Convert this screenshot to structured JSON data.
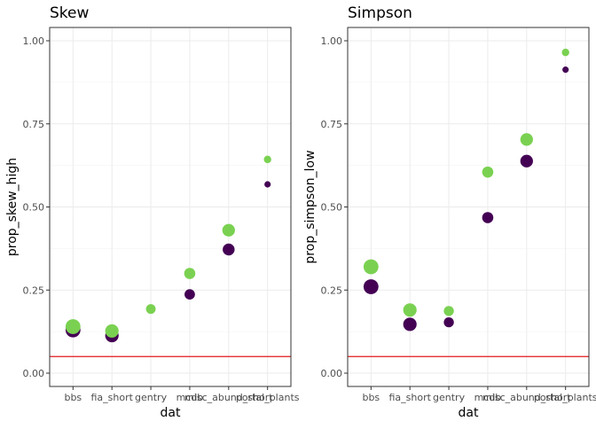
{
  "chart_data": [
    {
      "type": "scatter",
      "title": "Skew",
      "xlabel": "dat",
      "ylabel": "prop_skew_high",
      "categories": [
        "bbs",
        "fia_short",
        "gentry",
        "mcdb",
        "misc_abund_short",
        "portal_plants"
      ],
      "ylim": [
        -0.04,
        1.04
      ],
      "yticks": [
        "0.00",
        "0.25",
        "0.50",
        "0.75",
        "1.00"
      ],
      "reference_line": {
        "y": 0.05,
        "color": "#e31a1c"
      },
      "grid": true,
      "series": [
        {
          "color": "#440154",
          "values": [
            0.13,
            0.113,
            null,
            0.237,
            0.372,
            0.568
          ],
          "sizes": [
            4,
            3.6,
            null,
            2.8,
            3.2,
            1.7
          ]
        },
        {
          "color": "#7ad151",
          "values": [
            0.14,
            0.127,
            0.193,
            0.3,
            0.43,
            0.643
          ],
          "sizes": [
            4,
            3.6,
            2.6,
            3.0,
            3.4,
            2.0
          ]
        }
      ]
    },
    {
      "type": "scatter",
      "title": "Simpson",
      "xlabel": "dat",
      "ylabel": "prop_simpson_low",
      "categories": [
        "bbs",
        "fia_short",
        "gentry",
        "mcdb",
        "misc_abund_short",
        "portal_plants"
      ],
      "ylim": [
        -0.04,
        1.04
      ],
      "yticks": [
        "0.00",
        "0.25",
        "0.50",
        "0.75",
        "1.00"
      ],
      "reference_line": {
        "y": 0.05,
        "color": "#e31a1c"
      },
      "grid": true,
      "series": [
        {
          "color": "#440154",
          "values": [
            0.26,
            0.147,
            0.153,
            0.468,
            0.638,
            0.913
          ],
          "sizes": [
            4,
            3.6,
            2.7,
            3.0,
            3.4,
            1.7
          ]
        },
        {
          "color": "#7ad151",
          "values": [
            0.32,
            0.19,
            0.187,
            0.605,
            0.703,
            0.965
          ],
          "sizes": [
            4,
            3.6,
            2.7,
            3.0,
            3.4,
            2.0
          ]
        }
      ]
    }
  ]
}
